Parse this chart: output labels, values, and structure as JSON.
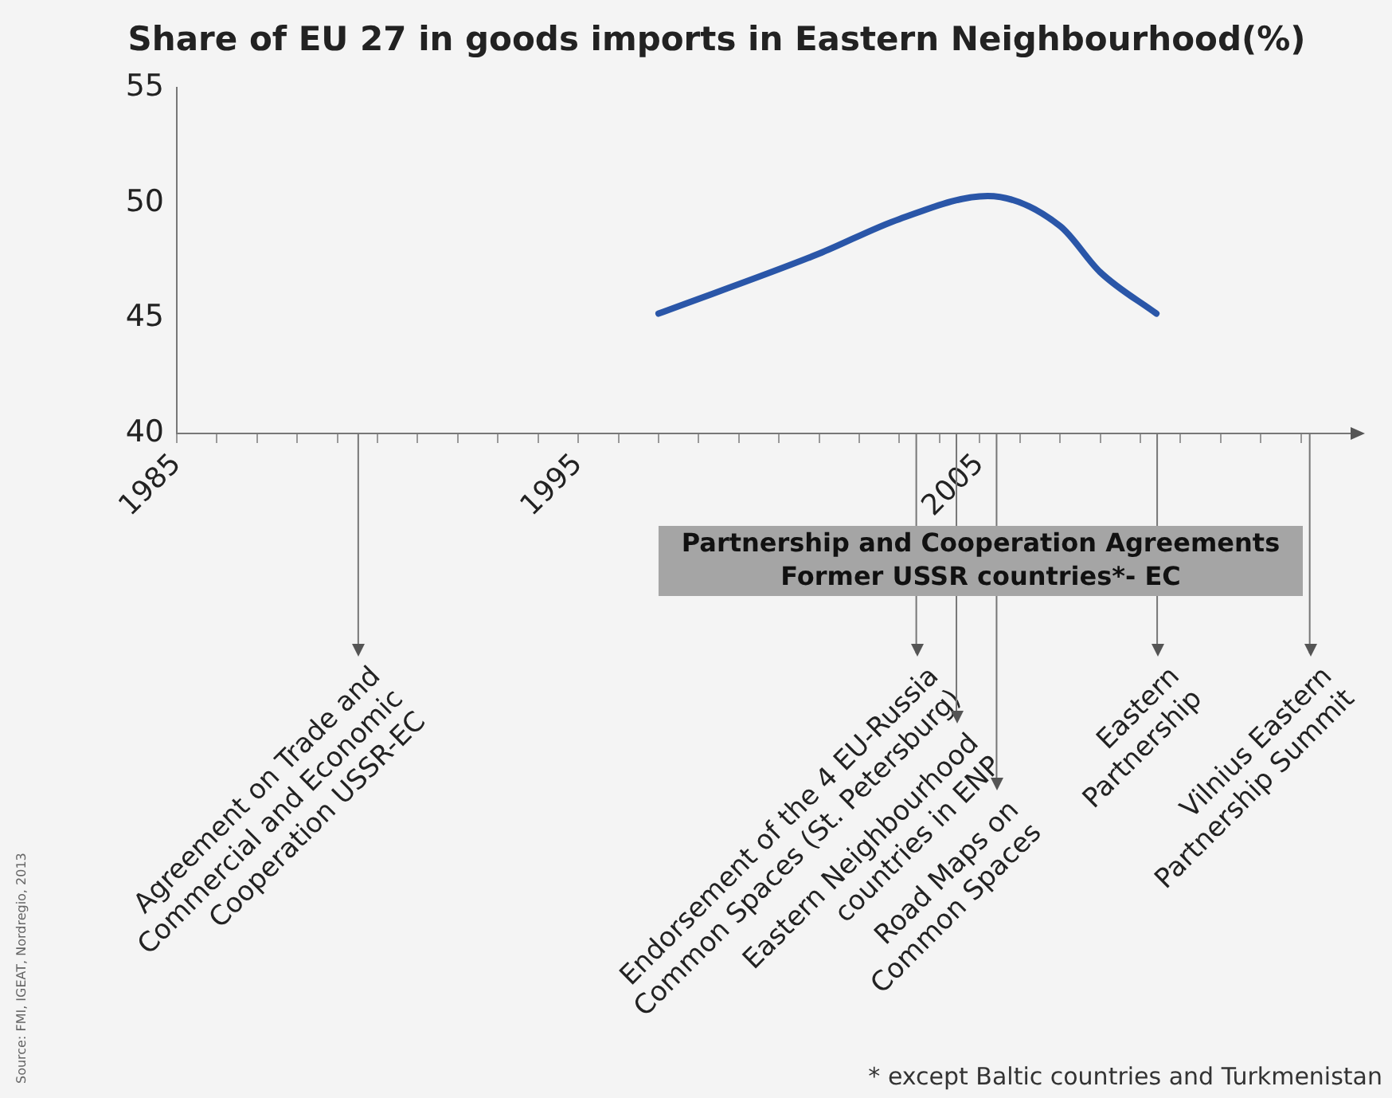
{
  "chart_data": {
    "type": "line",
    "title": "Share of EU 27 in goods imports in Eastern Neighbourhood(%)",
    "x": [
      1997,
      2001,
      2003,
      2005.2,
      2007,
      2008,
      2009.4
    ],
    "series": [
      {
        "color": "#2a56a8",
        "values": [
          45.2,
          47.8,
          49.3,
          50.3,
          49.0,
          47.0,
          45.2
        ]
      }
    ],
    "xlim": [
      1985,
      2014
    ],
    "xticks": [
      1985,
      {
        "value": 1986,
        "label": null
      },
      {
        "value": 1987,
        "label": null
      },
      {
        "value": 1988,
        "label": null
      },
      {
        "value": 1989,
        "label": null
      },
      {
        "value": 1990,
        "label": null
      },
      {
        "value": 1991,
        "label": null
      },
      {
        "value": 1992,
        "label": null
      },
      {
        "value": 1993,
        "label": null
      },
      {
        "value": 1994,
        "label": null
      },
      1995,
      {
        "value": 1996,
        "label": null
      },
      {
        "value": 1997,
        "label": null
      },
      {
        "value": 1998,
        "label": null
      },
      {
        "value": 1999,
        "label": null
      },
      {
        "value": 2000,
        "label": null
      },
      {
        "value": 2001,
        "label": null
      },
      {
        "value": 2002,
        "label": null
      },
      {
        "value": 2003,
        "label": null
      },
      {
        "value": 2004,
        "label": null
      },
      2005,
      {
        "value": 2006,
        "label": null
      },
      {
        "value": 2007,
        "label": null
      },
      {
        "value": 2008,
        "label": null
      },
      {
        "value": 2009,
        "label": null
      },
      {
        "value": 2010,
        "label": null
      },
      {
        "value": 2011,
        "label": null
      },
      {
        "value": 2012,
        "label": null
      },
      {
        "value": 2013,
        "label": null
      }
    ],
    "ylim": [
      40,
      55
    ],
    "yticks": [
      40,
      45,
      50,
      55
    ],
    "grid": false,
    "legend": false,
    "marker": "none",
    "line_style": "solid",
    "ref_lines": [
      {
        "axis": "x",
        "value": 1989.5,
        "label": "Agreement on Trade and\nCommercial and Economic\nCooperation USSR-EC"
      },
      {
        "axis": "x",
        "value": 2003.4,
        "label": "Endorsement of the 4 EU-Russia\nCommon Spaces (St. Petersburg)"
      },
      {
        "axis": "x",
        "value": 2004.4,
        "label": "Eastern Neighbourhood\ncountries in ENP"
      },
      {
        "axis": "x",
        "value": 2005.4,
        "label": "Road Maps on\nCommon Spaces"
      },
      {
        "axis": "x",
        "value": 2009.4,
        "label": "Eastern\nPartnership"
      },
      {
        "axis": "x",
        "value": 2013.2,
        "label": "Vilnius Eastern\nPartnership Summit"
      }
    ],
    "annotations": [
      "Partnership and Cooperation Agreements\nFormer USSR countries*- EC",
      "* except Baltic countries and Turkmenistan",
      "Source: FMI, IGEAT, Nordregio, 2013"
    ]
  }
}
